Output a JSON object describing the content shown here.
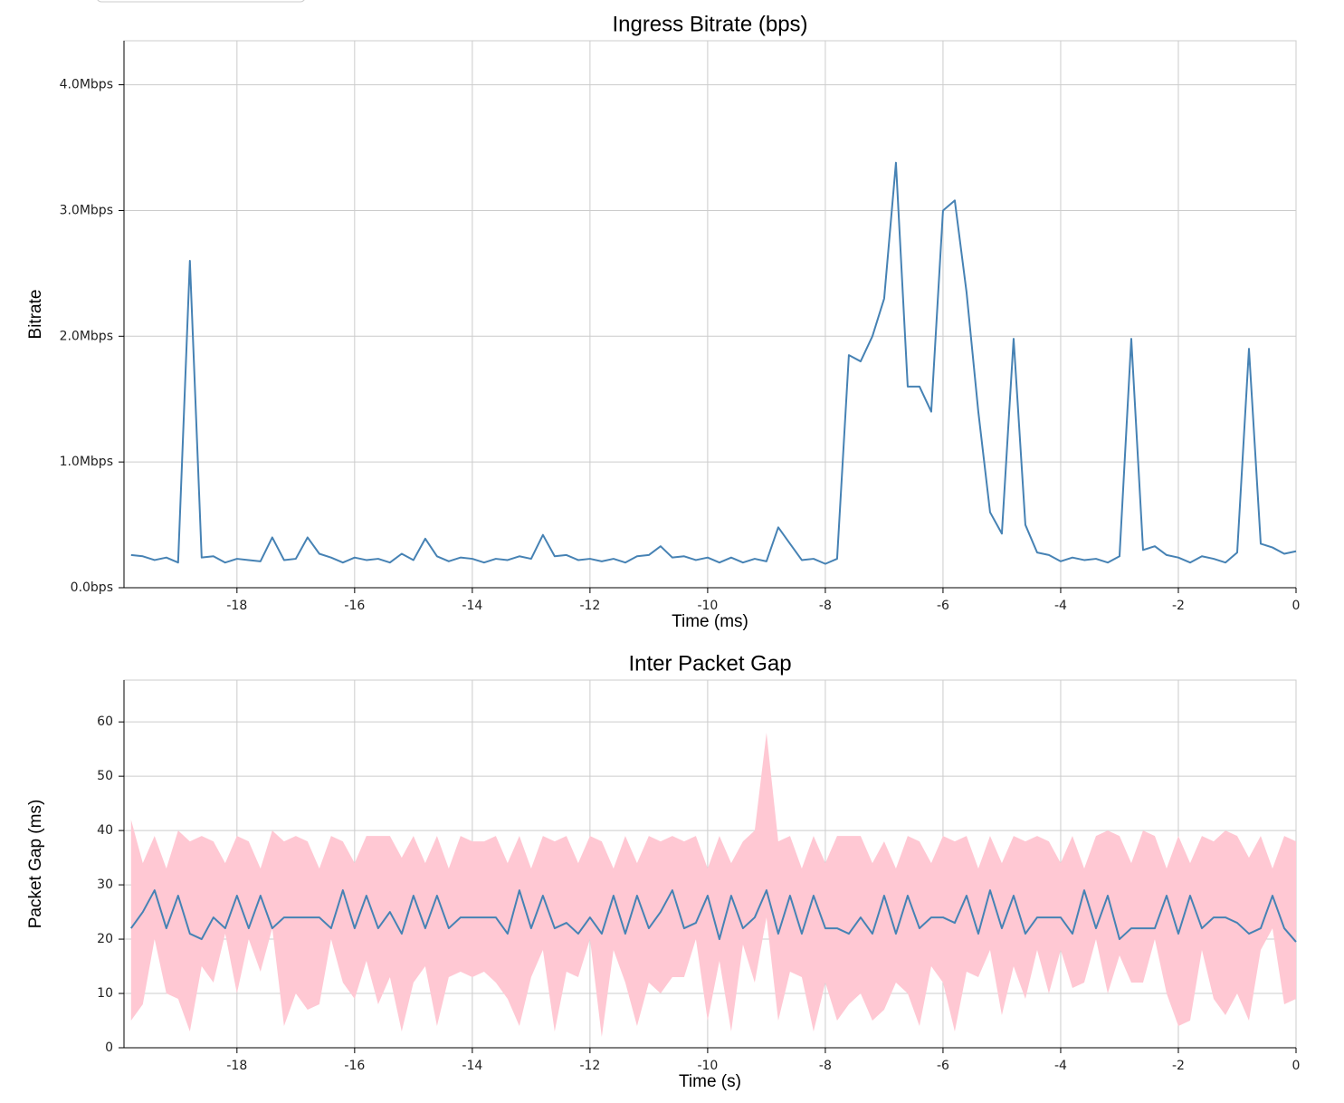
{
  "chart_data": [
    {
      "type": "line",
      "title": "Ingress Bitrate (bps)",
      "xlabel": "Time (ms)",
      "ylabel": "Bitrate",
      "xlim": [
        -19.92,
        0
      ],
      "ylim": [
        0,
        4350000
      ],
      "grid": true,
      "xticks": [
        -18,
        -16,
        -14,
        -12,
        -10,
        -8,
        -6,
        -4,
        -2,
        0
      ],
      "yticks": [
        {
          "value": 0,
          "label": "0.0bps"
        },
        {
          "value": 1000000,
          "label": "1.0Mbps"
        },
        {
          "value": 2000000,
          "label": "2.0Mbps"
        },
        {
          "value": 3000000,
          "label": "3.0Mbps"
        },
        {
          "value": 4000000,
          "label": "4.0Mbps"
        }
      ],
      "x": [
        -19.8,
        -19.6,
        -19.4,
        -19.2,
        -19.0,
        -18.8,
        -18.6,
        -18.4,
        -18.2,
        -18.0,
        -17.8,
        -17.6,
        -17.4,
        -17.2,
        -17.0,
        -16.8,
        -16.6,
        -16.4,
        -16.2,
        -16.0,
        -15.8,
        -15.6,
        -15.4,
        -15.2,
        -15.0,
        -14.8,
        -14.6,
        -14.4,
        -14.2,
        -14.0,
        -13.8,
        -13.6,
        -13.4,
        -13.2,
        -13.0,
        -12.8,
        -12.6,
        -12.4,
        -12.2,
        -12.0,
        -11.8,
        -11.6,
        -11.4,
        -11.2,
        -11.0,
        -10.8,
        -10.6,
        -10.4,
        -10.2,
        -10.0,
        -9.8,
        -9.6,
        -9.4,
        -9.2,
        -9.0,
        -8.8,
        -8.6,
        -8.4,
        -8.2,
        -8.0,
        -7.8,
        -7.6,
        -7.4,
        -7.2,
        -7.0,
        -6.8,
        -6.6,
        -6.4,
        -6.2,
        -6.0,
        -5.8,
        -5.6,
        -5.4,
        -5.2,
        -5.0,
        -4.8,
        -4.6,
        -4.4,
        -4.2,
        -4.0,
        -3.8,
        -3.6,
        -3.4,
        -3.2,
        -3.0,
        -2.8,
        -2.6,
        -2.4,
        -2.2,
        -2.0,
        -1.8,
        -1.6,
        -1.4,
        -1.2,
        -1.0,
        -0.8,
        -0.6,
        -0.4,
        -0.2,
        0
      ],
      "series": [
        {
          "color": "#4682b4",
          "values": [
            260000,
            250000,
            220000,
            240000,
            200000,
            2600000,
            240000,
            250000,
            200000,
            230000,
            220000,
            210000,
            400000,
            220000,
            230000,
            400000,
            270000,
            240000,
            200000,
            240000,
            220000,
            230000,
            200000,
            270000,
            220000,
            390000,
            250000,
            210000,
            240000,
            230000,
            200000,
            230000,
            220000,
            250000,
            230000,
            420000,
            250000,
            260000,
            220000,
            230000,
            210000,
            230000,
            200000,
            250000,
            260000,
            330000,
            240000,
            250000,
            220000,
            240000,
            200000,
            240000,
            200000,
            230000,
            210000,
            480000,
            350000,
            220000,
            230000,
            190000,
            230000,
            1850000,
            1800000,
            2000000,
            2300000,
            3380000,
            1600000,
            1600000,
            1400000,
            3000000,
            3080000,
            2350000,
            1400000,
            600000,
            430000,
            1980000,
            500000,
            280000,
            260000,
            210000,
            240000,
            220000,
            230000,
            200000,
            250000,
            1980000,
            300000,
            330000,
            260000,
            240000,
            200000,
            250000,
            230000,
            200000,
            280000,
            1900000,
            350000,
            320000,
            270000,
            290000
          ]
        }
      ]
    },
    {
      "type": "band",
      "title": "Inter Packet Gap",
      "xlabel": "Time (s)",
      "ylabel": "Packet Gap (ms)",
      "xlim": [
        -19.92,
        0
      ],
      "ylim": [
        0,
        67.7
      ],
      "grid": true,
      "xticks": [
        -18,
        -16,
        -14,
        -12,
        -10,
        -8,
        -6,
        -4,
        -2,
        0
      ],
      "yticks": [
        0,
        10,
        20,
        30,
        40,
        50,
        60
      ],
      "x": [
        -19.8,
        -19.6,
        -19.4,
        -19.2,
        -19.0,
        -18.8,
        -18.6,
        -18.4,
        -18.2,
        -18.0,
        -17.8,
        -17.6,
        -17.4,
        -17.2,
        -17.0,
        -16.8,
        -16.6,
        -16.4,
        -16.2,
        -16.0,
        -15.8,
        -15.6,
        -15.4,
        -15.2,
        -15.0,
        -14.8,
        -14.6,
        -14.4,
        -14.2,
        -14.0,
        -13.8,
        -13.6,
        -13.4,
        -13.2,
        -13.0,
        -12.8,
        -12.6,
        -12.4,
        -12.2,
        -12.0,
        -11.8,
        -11.6,
        -11.4,
        -11.2,
        -11.0,
        -10.8,
        -10.6,
        -10.4,
        -10.2,
        -10.0,
        -9.8,
        -9.6,
        -9.4,
        -9.2,
        -9.0,
        -8.8,
        -8.6,
        -8.4,
        -8.2,
        -8.0,
        -7.8,
        -7.6,
        -7.4,
        -7.2,
        -7.0,
        -6.8,
        -6.6,
        -6.4,
        -6.2,
        -6.0,
        -5.8,
        -5.6,
        -5.4,
        -5.2,
        -5.0,
        -4.8,
        -4.6,
        -4.4,
        -4.2,
        -4.0,
        -3.8,
        -3.6,
        -3.4,
        -3.2,
        -3.0,
        -2.8,
        -2.6,
        -2.4,
        -2.2,
        -2.0,
        -1.8,
        -1.6,
        -1.4,
        -1.2,
        -1.0,
        -0.8,
        -0.6,
        -0.4,
        -0.2,
        0
      ],
      "band": {
        "color": "#ffc8d3",
        "high": [
          42,
          34,
          39,
          33,
          40,
          38,
          39,
          38,
          34,
          39,
          38,
          33,
          40,
          38,
          39,
          38,
          33,
          39,
          38,
          34,
          39,
          39,
          39,
          35,
          39,
          34,
          39,
          33,
          39,
          38,
          38,
          39,
          34,
          39,
          33,
          39,
          38,
          39,
          34,
          39,
          38,
          33,
          39,
          34,
          39,
          38,
          39,
          38,
          39,
          33,
          39,
          34,
          38,
          40,
          58,
          38,
          39,
          33,
          39,
          34,
          39,
          39,
          39,
          34,
          38,
          33,
          39,
          38,
          34,
          39,
          38,
          39,
          33,
          39,
          34,
          39,
          38,
          39,
          38,
          34,
          39,
          33,
          39,
          40,
          39,
          34,
          40,
          39,
          33,
          39,
          34,
          39,
          38,
          40,
          39,
          35,
          39,
          33,
          39,
          38
        ],
        "low": [
          5,
          8,
          20,
          10,
          9,
          3,
          15,
          12,
          21,
          10,
          20,
          14,
          22,
          4,
          10,
          7,
          8,
          20,
          12,
          9,
          16,
          8,
          13,
          3,
          12,
          15,
          4,
          13,
          14,
          13,
          14,
          12,
          9,
          4,
          13,
          18,
          3,
          14,
          13,
          20,
          2,
          18,
          12,
          4,
          12,
          10,
          13,
          13,
          20,
          5,
          16,
          3,
          19,
          12,
          24,
          5,
          14,
          13,
          3,
          12,
          5,
          8,
          10,
          5,
          7,
          12,
          10,
          4,
          15,
          12,
          3,
          14,
          13,
          18,
          6,
          15,
          9,
          18,
          10,
          18,
          11,
          12,
          20,
          10,
          17,
          12,
          12,
          20,
          10,
          4,
          5,
          18,
          9,
          6,
          10,
          5,
          18,
          22,
          8,
          9
        ]
      },
      "series": [
        {
          "color": "#4682b4",
          "values": [
            22,
            25,
            29,
            22,
            28,
            21,
            20,
            24,
            22,
            28,
            22,
            28,
            22,
            24,
            24,
            24,
            24,
            22,
            29,
            22,
            28,
            22,
            25,
            21,
            28,
            22,
            28,
            22,
            24,
            24,
            24,
            24,
            21,
            29,
            22,
            28,
            22,
            23,
            21,
            24,
            21,
            28,
            21,
            28,
            22,
            25,
            29,
            22,
            23,
            28,
            20,
            28,
            22,
            24,
            29,
            21,
            28,
            21,
            28,
            22,
            22,
            21,
            24,
            21,
            28,
            21,
            28,
            22,
            24,
            24,
            23,
            28,
            21,
            29,
            22,
            28,
            21,
            24,
            24,
            24,
            21,
            29,
            22,
            28,
            20,
            22,
            22,
            22,
            28,
            21,
            28,
            22,
            24,
            24,
            23,
            21,
            22,
            28,
            22,
            19.5
          ]
        }
      ]
    }
  ]
}
